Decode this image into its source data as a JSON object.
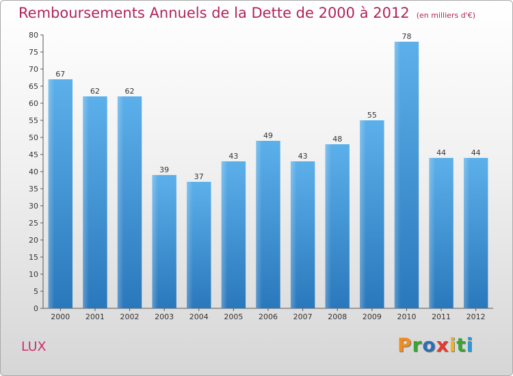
{
  "title": "Remboursements Annuels de la Dette de 2000 à 2012",
  "unit": "(en milliers d'€)",
  "commune": "LUX",
  "logo": {
    "letters": [
      "P",
      "r",
      "o",
      "x",
      "i",
      "t",
      "i"
    ],
    "colors": [
      "#f28c1e",
      "#3aa535",
      "#2c6fb5",
      "#e63a2f",
      "#f2b51e",
      "#3aa535",
      "#2c9ad6"
    ]
  },
  "colors": {
    "bar": "#3e95d6",
    "bar_light": "#5aade6",
    "bar_dark": "#2a7bbf",
    "title": "#b0245a"
  },
  "chart_data": {
    "type": "bar",
    "title": "Remboursements Annuels de la Dette de 2000 à 2012",
    "xlabel": "",
    "ylabel": "",
    "categories": [
      "2000",
      "2001",
      "2002",
      "2003",
      "2004",
      "2005",
      "2006",
      "2007",
      "2008",
      "2009",
      "2010",
      "2011",
      "2012"
    ],
    "values": [
      67,
      62,
      62,
      39,
      37,
      43,
      49,
      43,
      48,
      55,
      78,
      44,
      44
    ],
    "ylim": [
      0,
      80
    ],
    "yticks": [
      0,
      5,
      10,
      15,
      20,
      25,
      30,
      35,
      40,
      45,
      50,
      55,
      60,
      65,
      70,
      75,
      80
    ],
    "grid": false,
    "legend": "none"
  }
}
